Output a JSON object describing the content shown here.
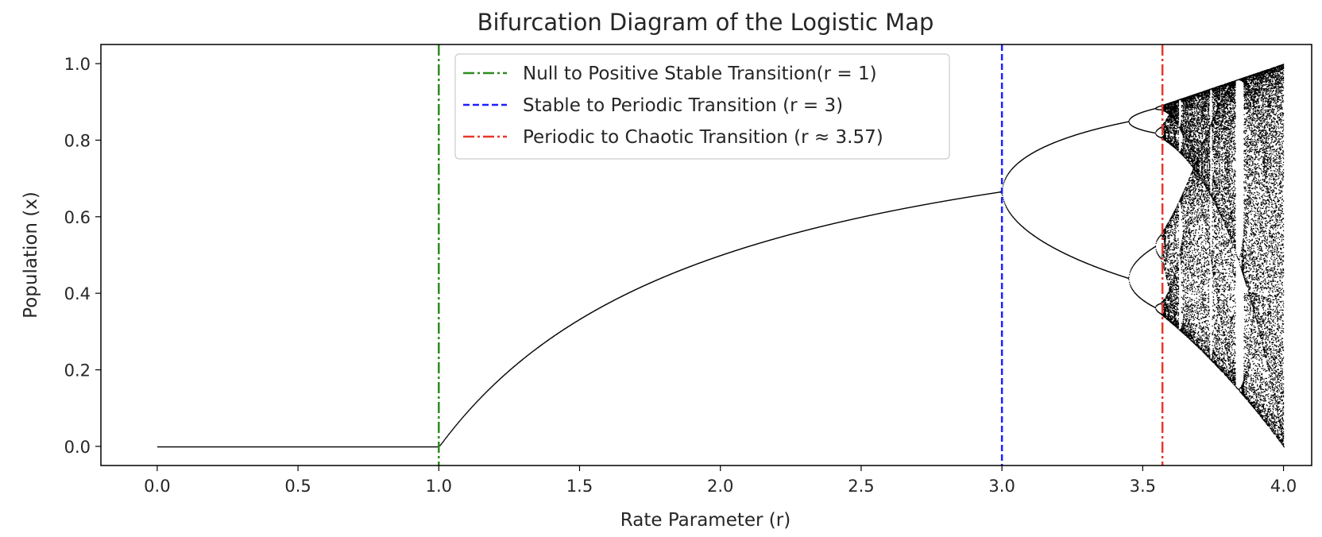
{
  "chart_data": {
    "type": "scatter",
    "title": "Bifurcation Diagram of the Logistic Map",
    "xlabel": "Rate Parameter (r)",
    "ylabel": "Population (x)",
    "xlim": [
      -0.2,
      4.1
    ],
    "ylim": [
      -0.05,
      1.05
    ],
    "xticks": [
      "0.0",
      "0.5",
      "1.0",
      "1.5",
      "2.0",
      "2.5",
      "3.0",
      "3.5",
      "4.0"
    ],
    "yticks": [
      "0.0",
      "0.2",
      "0.4",
      "0.6",
      "0.8",
      "1.0"
    ],
    "grid": false,
    "legend_position": "top-center",
    "scatter_series": {
      "description": "logistic map x(n+1) = r*x(n)*(1-x(n)) attractor points",
      "r_range": [
        0.0,
        4.0
      ],
      "color": "#000000"
    },
    "vlines": [
      {
        "x": 1,
        "label": "Null to Positive Stable Transition(r = 1)",
        "color": "#2e8b21",
        "style": "dashdot"
      },
      {
        "x": 3,
        "label": "Stable to Periodic Transition (r = 3)",
        "color": "#1f1fff",
        "style": "dashed"
      },
      {
        "x": 3.57,
        "label": "Periodic to Chaotic Transition (r ≈ 3.57)",
        "color": "#e8372b",
        "style": "dashdot"
      }
    ]
  }
}
